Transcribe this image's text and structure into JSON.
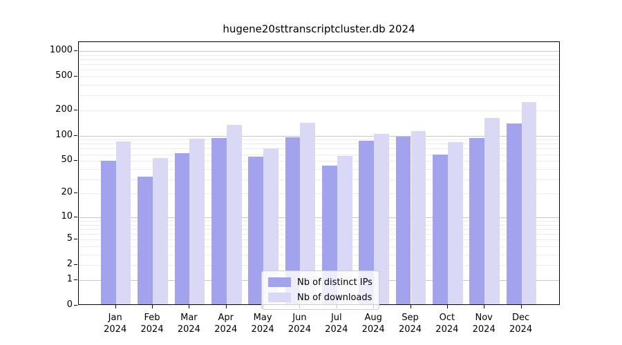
{
  "chart_data": {
    "type": "bar",
    "title": "hugene20sttranscriptcluster.db 2024",
    "x_year": "2024",
    "categories": [
      "Jan",
      "Feb",
      "Mar",
      "Apr",
      "May",
      "Jun",
      "Jul",
      "Aug",
      "Sep",
      "Oct",
      "Nov",
      "Dec"
    ],
    "series": [
      {
        "name": "Nb of distinct IPs",
        "color": "#a3a3ed",
        "values": [
          48,
          31,
          60,
          91,
          54,
          93,
          42,
          84,
          94,
          57,
          90,
          135
        ]
      },
      {
        "name": "Nb of downloads",
        "color": "#d9d9f6",
        "values": [
          82,
          52,
          88,
          130,
          68,
          138,
          55,
          101,
          110,
          80,
          156,
          240
        ]
      }
    ],
    "y_ticks": [
      0,
      1,
      2,
      5,
      10,
      20,
      50,
      100,
      200,
      500,
      1000
    ],
    "y_scale": "log10(1+x)",
    "ylim": [
      0,
      1280
    ],
    "grid": true,
    "legend_position": "bottom-center",
    "colors": {
      "major_grid": "#c6c6c6",
      "minor_grid": "#ebebeb",
      "axis": "#000000",
      "background": "#ffffff"
    }
  }
}
